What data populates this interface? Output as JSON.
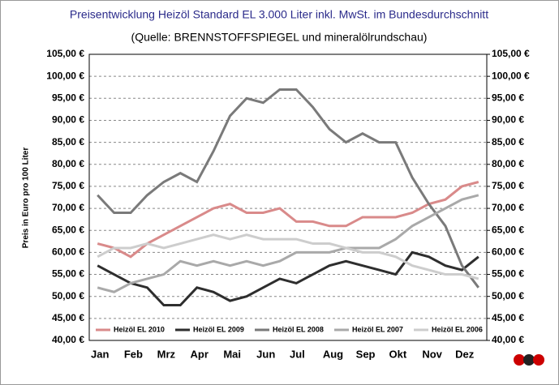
{
  "chart_data": {
    "type": "line",
    "title": "Preisentwicklung Heizöl Standard EL 3.000 Liter inkl. MwSt. im Bundesdurchschnitt",
    "subtitle": "(Quelle: BRENNSTOFFSPIEGEL und mineralölrundschau)",
    "y_label": "Preis in Euro pro 100 Liter",
    "categories": [
      "Jan",
      null,
      "Feb",
      null,
      "Mrz",
      null,
      "Apr",
      null,
      "Mai",
      null,
      "Jun",
      null,
      "Jul",
      null,
      "Aug",
      null,
      "Sep",
      null,
      "Okt",
      null,
      "Nov",
      null,
      "Dez",
      null
    ],
    "series": [
      {
        "name": "Heizöl EL 2010",
        "color": "#d98a8a",
        "values": [
          62,
          61,
          59,
          62,
          64,
          66,
          68,
          70,
          71,
          69,
          69,
          70,
          67,
          67,
          66,
          66,
          68,
          68,
          68,
          69,
          71,
          72,
          75,
          76
        ]
      },
      {
        "name": "Heizöl EL 2009",
        "color": "#2e2e2e",
        "values": [
          57,
          55,
          53,
          52,
          48,
          48,
          52,
          51,
          49,
          50,
          52,
          54,
          53,
          55,
          57,
          58,
          57,
          56,
          55,
          60,
          59,
          57,
          56,
          59
        ]
      },
      {
        "name": "Heizöl EL 2008",
        "color": "#7a7a7a",
        "values": [
          73,
          69,
          69,
          73,
          76,
          78,
          76,
          83,
          91,
          95,
          94,
          97,
          97,
          93,
          88,
          85,
          87,
          85,
          85,
          77,
          71,
          66,
          57,
          52
        ]
      },
      {
        "name": "Heizöl EL 2007",
        "color": "#a9a9a9",
        "values": [
          52,
          51,
          53,
          54,
          55,
          58,
          57,
          58,
          57,
          58,
          57,
          58,
          60,
          60,
          60,
          61,
          61,
          61,
          63,
          66,
          68,
          70,
          72,
          73
        ]
      },
      {
        "name": "Heizöl EL 2006",
        "color": "#cdcdcd",
        "values": [
          59,
          61,
          61,
          62,
          61,
          62,
          63,
          64,
          63,
          64,
          63,
          63,
          63,
          62,
          62,
          61,
          60,
          60,
          59,
          57,
          56,
          55,
          55,
          54
        ]
      }
    ],
    "ylim": [
      40,
      105
    ],
    "yticks": [
      {
        "value": 40,
        "label": "40,00 €"
      },
      {
        "value": 45,
        "label": "45,00 €"
      },
      {
        "value": 50,
        "label": "50,00 €"
      },
      {
        "value": 55,
        "label": "55,00 €"
      },
      {
        "value": 60,
        "label": "60,00 €"
      },
      {
        "value": 65,
        "label": "65,00 €"
      },
      {
        "value": 70,
        "label": "70,00 €"
      },
      {
        "value": 75,
        "label": "75,00 €"
      },
      {
        "value": 80,
        "label": "80,00 €"
      },
      {
        "value": 85,
        "label": "85,00 €"
      },
      {
        "value": 90,
        "label": "90,00 €"
      },
      {
        "value": 95,
        "label": "95,00 €"
      },
      {
        "value": 100,
        "label": "100,00 €"
      },
      {
        "value": 105,
        "label": "105,00 €"
      }
    ],
    "y2lim": [
      40,
      105
    ],
    "y2ticks": [
      {
        "value": 40,
        "label": "40,00 €"
      },
      {
        "value": 45,
        "label": "45,00 €"
      },
      {
        "value": 50,
        "label": "50,00 €"
      },
      {
        "value": 55,
        "label": "55,00 €"
      },
      {
        "value": 60,
        "label": "60,00 €"
      },
      {
        "value": 65,
        "label": "65,00 €"
      },
      {
        "value": 70,
        "label": "70,00 €"
      },
      {
        "value": 75,
        "label": "75,00 €"
      },
      {
        "value": 80,
        "label": "80,00 €"
      },
      {
        "value": 85,
        "label": "85,00 €"
      },
      {
        "value": 90,
        "label": "90,00 €"
      },
      {
        "value": 95,
        "label": "95,00 €"
      },
      {
        "value": 100,
        "label": "100,00 €"
      },
      {
        "value": 105,
        "label": "105,00 €"
      }
    ],
    "grid": true
  }
}
